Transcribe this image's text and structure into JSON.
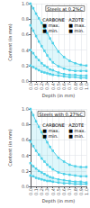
{
  "chart_data": [
    {
      "type": "line",
      "title": "Steels at 0.2%C",
      "xlabel": "Depth (in mm)",
      "ylabel": "Content (in mm)",
      "xlim": [
        0,
        1.0
      ],
      "ylim": [
        0,
        1.0
      ],
      "xticks": [
        {
          "value": 0.0,
          "label": "0.0"
        },
        0.1,
        0.2,
        0.3,
        0.4,
        0.5,
        0.6,
        0.7,
        0.8,
        0.9,
        {
          "value": 1.0,
          "label": "1.0"
        }
      ],
      "yticks": [
        {
          "value": 0.0,
          "label": "0.0"
        },
        0.2,
        0.4,
        0.6,
        0.8,
        {
          "value": 1.0,
          "label": "1.0"
        }
      ],
      "grid": true,
      "x": [
        0.0,
        0.05,
        0.1,
        0.15,
        0.2,
        0.25,
        0.3,
        0.35,
        0.4,
        0.5,
        0.6,
        0.7,
        0.8,
        0.9,
        1.0
      ],
      "series": [
        {
          "type": "band",
          "color": "#4dd0e8",
          "marker": "square",
          "upper": [
            1.0,
            0.94,
            0.87,
            0.81,
            0.75,
            0.69,
            0.62,
            0.55,
            0.49,
            0.38,
            0.31,
            0.26,
            0.23,
            0.21,
            0.2
          ],
          "lower": [
            0.72,
            0.65,
            0.58,
            0.51,
            0.45,
            0.39,
            0.33,
            0.28,
            0.24,
            0.19,
            0.16,
            0.14,
            0.13,
            0.13,
            0.13
          ]
        },
        {
          "type": "band",
          "color": "#4dd0e8",
          "marker": "square",
          "upper": [
            0.4,
            0.36,
            0.31,
            0.27,
            0.23,
            0.2,
            0.18,
            0.15,
            0.14,
            0.11,
            0.09,
            0.08,
            0.08,
            0.07,
            0.07
          ],
          "lower": [
            0.2,
            0.18,
            0.16,
            0.14,
            0.12,
            0.11,
            0.1,
            0.09,
            0.08,
            0.07,
            0.06,
            0.05,
            0.05,
            0.04,
            0.04
          ]
        }
      ],
      "annotations": [
        "CARBONE",
        "■ max.",
        "■ min.",
        "AZOTE",
        "■ max.",
        "■ min."
      ]
    },
    {
      "type": "line",
      "title": "Steels with 0.27%C",
      "xlabel": "Depth (in mm)",
      "ylabel": "Content (in mm)",
      "xlim": [
        0,
        1.0
      ],
      "ylim": [
        0,
        1.0
      ],
      "xticks": [
        {
          "value": 0.0,
          "label": "0.0"
        },
        0.1,
        0.2,
        0.3,
        0.4,
        0.5,
        0.6,
        0.7,
        0.8,
        0.9,
        {
          "value": 1.0,
          "label": "1.0"
        }
      ],
      "yticks": [
        {
          "value": 0.0,
          "label": "0.0"
        },
        0.2,
        0.4,
        0.6,
        0.8,
        {
          "value": 1.0,
          "label": "1.0"
        }
      ],
      "grid": true,
      "x": [
        0.0,
        0.05,
        0.1,
        0.15,
        0.2,
        0.25,
        0.3,
        0.35,
        0.4,
        0.5,
        0.6,
        0.7,
        0.8,
        0.9,
        1.0
      ],
      "series": [
        {
          "type": "band",
          "color": "#4dd0e8",
          "marker": "square",
          "upper": [
            1.0,
            0.92,
            0.84,
            0.77,
            0.7,
            0.63,
            0.57,
            0.51,
            0.46,
            0.37,
            0.32,
            0.28,
            0.26,
            0.25,
            0.25
          ],
          "lower": [
            0.58,
            0.52,
            0.46,
            0.41,
            0.36,
            0.32,
            0.28,
            0.25,
            0.22,
            0.18,
            0.16,
            0.15,
            0.14,
            0.13,
            0.13
          ]
        },
        {
          "type": "band",
          "color": "#4dd0e8",
          "marker": "square",
          "upper": [
            0.3,
            0.26,
            0.23,
            0.2,
            0.18,
            0.16,
            0.14,
            0.12,
            0.11,
            0.09,
            0.08,
            0.07,
            0.06,
            0.06,
            0.05
          ],
          "lower": [
            0.14,
            0.13,
            0.11,
            0.1,
            0.09,
            0.08,
            0.07,
            0.07,
            0.06,
            0.05,
            0.04,
            0.04,
            0.03,
            0.03,
            0.03
          ]
        }
      ],
      "annotations": [
        "CARBONE",
        "■ max.",
        "■ min.",
        "AZOTE",
        "■ max.",
        "■ min."
      ]
    }
  ]
}
